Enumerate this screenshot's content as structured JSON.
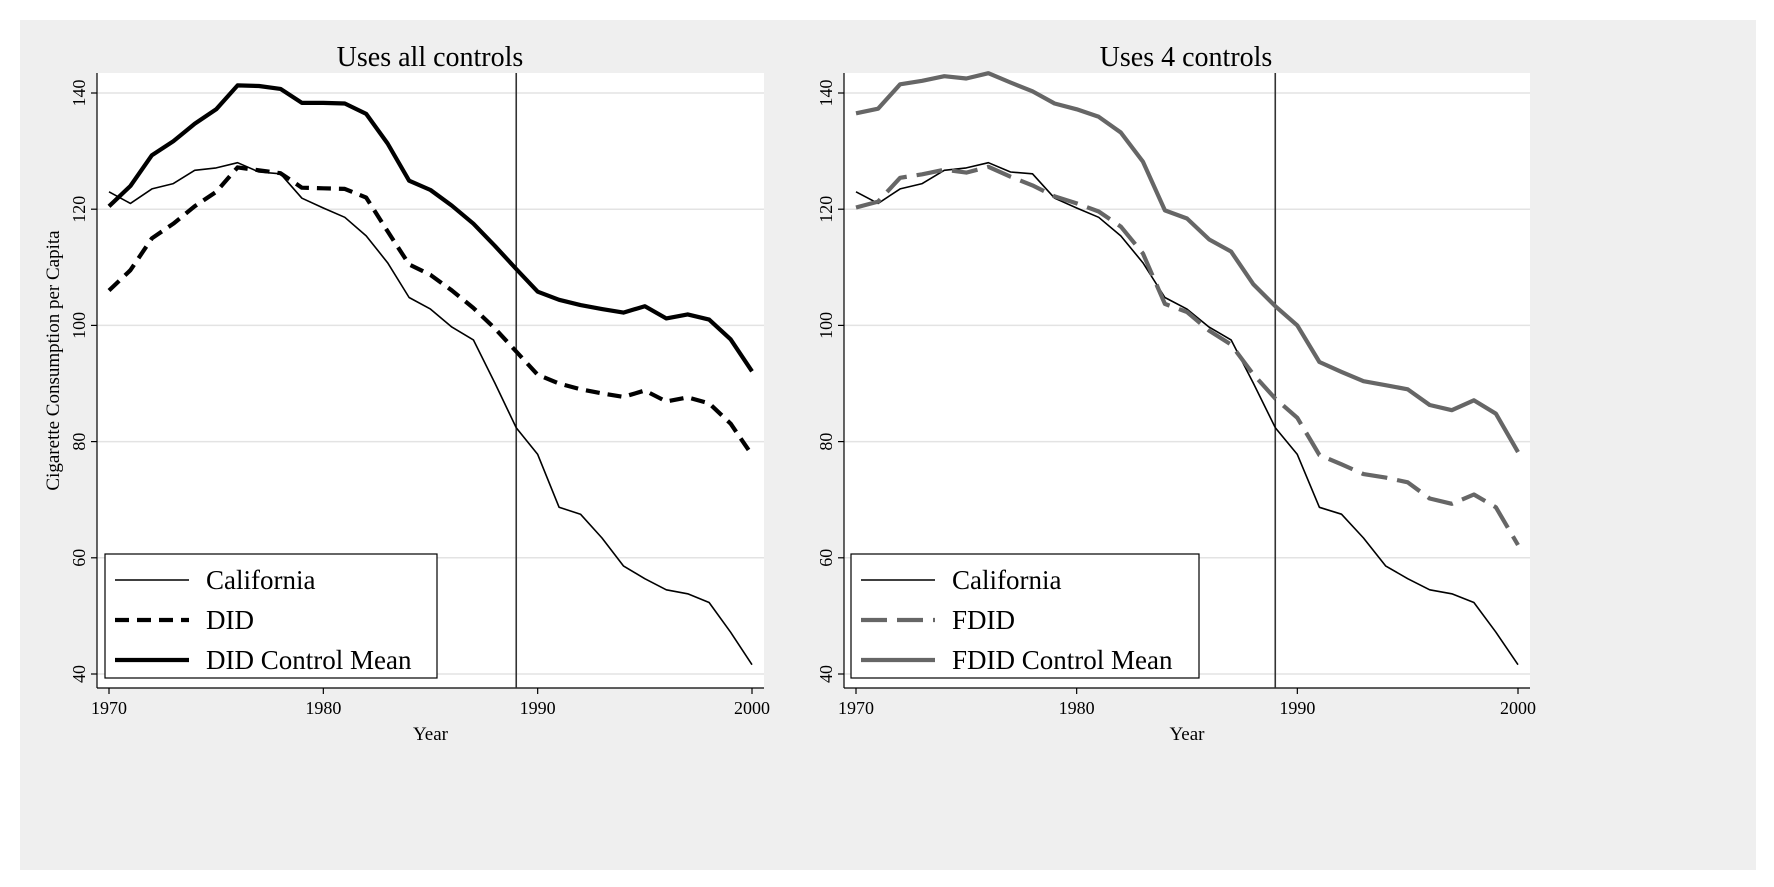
{
  "chart_data": [
    {
      "type": "line",
      "title": "Uses all controls",
      "xlabel": "Year",
      "ylabel": "Cigarette Consumption per Capita",
      "xlim": [
        1970,
        2000
      ],
      "ylim": [
        40,
        140
      ],
      "xticks": [
        "1970",
        "1980",
        "1990",
        "2000"
      ],
      "yticks": [
        "40",
        "60",
        "80",
        "100",
        "120",
        "140"
      ],
      "grid": true,
      "legend_position": "bottom-left",
      "treatment_line_x": 1989,
      "x": [
        1970,
        1971,
        1972,
        1973,
        1974,
        1975,
        1976,
        1977,
        1978,
        1979,
        1980,
        1981,
        1982,
        1983,
        1984,
        1985,
        1986,
        1987,
        1988,
        1989,
        1990,
        1991,
        1992,
        1993,
        1994,
        1995,
        1996,
        1997,
        1998,
        1999,
        2000
      ],
      "series": [
        {
          "name": "California",
          "color": "#000000",
          "style": "solid",
          "width": "thin",
          "values": [
            123.0,
            121.0,
            123.5,
            124.4,
            126.7,
            127.1,
            128.0,
            126.4,
            126.1,
            121.9,
            120.2,
            118.6,
            115.4,
            110.8,
            104.8,
            102.8,
            99.7,
            97.5,
            90.1,
            82.4,
            77.8,
            68.7,
            67.5,
            63.4,
            58.6,
            56.4,
            54.5,
            53.8,
            52.3,
            47.2,
            41.6
          ]
        },
        {
          "name": "DID",
          "color": "#000000",
          "style": "dashed",
          "width": "thick",
          "values": [
            106.0,
            109.5,
            115.0,
            117.5,
            120.5,
            123.0,
            127.2,
            126.7,
            126.2,
            123.7,
            123.6,
            123.5,
            122.0,
            116.2,
            110.5,
            108.7,
            106.0,
            103.0,
            99.5,
            95.5,
            91.5,
            90.0,
            89.0,
            88.3,
            87.7,
            88.8,
            86.9,
            87.6,
            86.6,
            83.1,
            77.7
          ]
        },
        {
          "name": "DID Control Mean",
          "color": "#000000",
          "style": "solid",
          "width": "thick",
          "values": [
            120.5,
            124.0,
            129.3,
            131.7,
            134.7,
            137.2,
            141.3,
            141.2,
            140.7,
            138.3,
            138.3,
            138.2,
            136.4,
            131.3,
            124.9,
            123.3,
            120.6,
            117.5,
            113.7,
            109.7,
            105.8,
            104.4,
            103.5,
            102.8,
            102.2,
            103.3,
            101.2,
            101.9,
            101.0,
            97.6,
            92.1
          ]
        }
      ]
    },
    {
      "type": "line",
      "title": "Uses 4 controls",
      "xlabel": "Year",
      "ylabel": "",
      "xlim": [
        1970,
        2000
      ],
      "ylim": [
        40,
        140
      ],
      "xticks": [
        "1970",
        "1980",
        "1990",
        "2000"
      ],
      "yticks": [
        "40",
        "60",
        "80",
        "100",
        "120",
        "140"
      ],
      "grid": true,
      "legend_position": "bottom-left",
      "treatment_line_x": 1989,
      "x": [
        1970,
        1971,
        1972,
        1973,
        1974,
        1975,
        1976,
        1977,
        1978,
        1979,
        1980,
        1981,
        1982,
        1983,
        1984,
        1985,
        1986,
        1987,
        1988,
        1989,
        1990,
        1991,
        1992,
        1993,
        1994,
        1995,
        1996,
        1997,
        1998,
        1999,
        2000
      ],
      "series": [
        {
          "name": "California",
          "color": "#000000",
          "style": "solid",
          "width": "thin",
          "values": [
            123.0,
            121.0,
            123.5,
            124.4,
            126.7,
            127.1,
            128.0,
            126.4,
            126.1,
            121.9,
            120.2,
            118.6,
            115.4,
            110.8,
            104.8,
            102.8,
            99.7,
            97.5,
            90.1,
            82.4,
            77.8,
            68.7,
            67.5,
            63.4,
            58.6,
            56.4,
            54.5,
            53.8,
            52.3,
            47.2,
            41.6
          ]
        },
        {
          "name": "FDID",
          "color": "#666666",
          "style": "dashed",
          "width": "thick",
          "values": [
            120.3,
            121.3,
            125.4,
            126.0,
            126.8,
            126.3,
            127.3,
            125.6,
            124.1,
            122.2,
            121.0,
            119.6,
            117.0,
            112.4,
            103.7,
            102.3,
            99.1,
            96.7,
            91.6,
            87.4,
            84.1,
            77.7,
            76.1,
            74.4,
            73.8,
            73.0,
            70.2,
            69.3,
            70.9,
            68.7,
            62.2
          ]
        },
        {
          "name": "FDID Control Mean",
          "color": "#666666",
          "style": "solid",
          "width": "thick",
          "values": [
            136.5,
            137.3,
            141.5,
            142.1,
            142.9,
            142.5,
            143.4,
            141.8,
            140.3,
            138.2,
            137.2,
            135.9,
            133.2,
            128.2,
            119.8,
            118.4,
            114.8,
            112.7,
            107.1,
            103.3,
            100.0,
            93.7,
            92.0,
            90.4,
            89.7,
            89.0,
            86.3,
            85.4,
            87.1,
            84.8,
            78.2
          ]
        }
      ]
    }
  ]
}
